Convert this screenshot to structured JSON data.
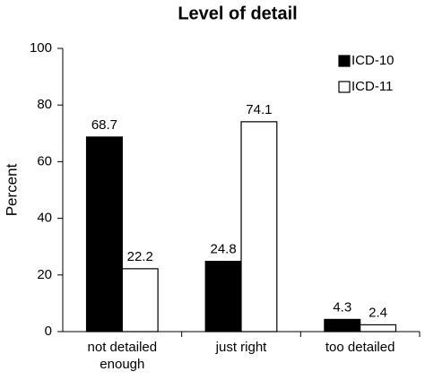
{
  "chart_data": {
    "type": "bar",
    "title": "Level of detail",
    "y_label": "Percent",
    "categories": [
      "not detailed enough",
      "just right",
      "too detailed"
    ],
    "series": [
      {
        "name": "ICD-10",
        "color": "#000000",
        "values": [
          68.7,
          24.8,
          4.3
        ]
      },
      {
        "name": "ICD-11",
        "color": "#ffffff",
        "values": [
          22.2,
          74.1,
          2.4
        ]
      }
    ],
    "ylim": [
      0,
      100
    ],
    "yticks": [
      0,
      20,
      40,
      60,
      80,
      100
    ],
    "grid": false,
    "legend": "top-right"
  }
}
